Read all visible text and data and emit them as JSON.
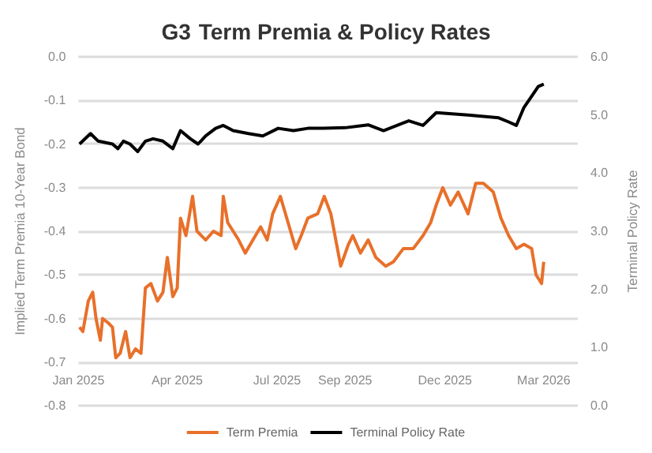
{
  "chart_data": {
    "type": "line",
    "title": "G3 Term Premia & Policy Rates",
    "ylabel": "Implied Term Premia 10-Year Bond",
    "y2label": "Terminal Policy Rate",
    "xlim": [
      "2025-01-01",
      "2026-04-01"
    ],
    "xticks": [
      {
        "value": "2025-01-01",
        "label": "Jan 2025"
      },
      {
        "value": "2025-04-01",
        "label": "Apr 2025"
      },
      {
        "value": "2025-07-01",
        "label": "Jul 2025"
      },
      {
        "value": "2025-09-01",
        "label": "Sep 2025"
      },
      {
        "value": "2025-12-01",
        "label": "Dec 2025"
      },
      {
        "value": "2026-03-01",
        "label": "Mar 2026"
      }
    ],
    "ylim": [
      -0.8,
      0
    ],
    "yticks": [
      {
        "value": -0.8,
        "label": "-0.8"
      },
      {
        "value": -0.7,
        "label": "-0.7"
      },
      {
        "value": -0.6,
        "label": "-0.6"
      },
      {
        "value": -0.5,
        "label": "-0.5"
      },
      {
        "value": -0.4,
        "label": "-0.4"
      },
      {
        "value": -0.3,
        "label": "-0.3"
      },
      {
        "value": -0.2,
        "label": "-0.2"
      },
      {
        "value": -0.1,
        "label": "-0.1"
      },
      {
        "value": 0,
        "label": "0.0"
      }
    ],
    "y2lim": [
      0,
      6
    ],
    "y2ticks": [
      {
        "value": 0,
        "label": "0.0"
      },
      {
        "value": 1,
        "label": "1.0"
      },
      {
        "value": 2,
        "label": "2.0"
      },
      {
        "value": 3,
        "label": "3.0"
      },
      {
        "value": 4,
        "label": "4.0"
      },
      {
        "value": 5,
        "label": "5.0"
      },
      {
        "value": 6,
        "label": "6.0"
      }
    ],
    "grid": "y",
    "legend": "bottom",
    "marker": "none",
    "line_style": "solid",
    "series": [
      {
        "name": "Term Premia",
        "color": "#e8702a",
        "x": [
          "2025-01-02",
          "2025-01-05",
          "2025-01-10",
          "2025-01-14",
          "2025-01-17",
          "2025-01-21",
          "2025-01-23",
          "2025-01-28",
          "2025-02-01",
          "2025-02-04",
          "2025-02-08",
          "2025-02-13",
          "2025-02-17",
          "2025-02-22",
          "2025-02-27",
          "2025-03-03",
          "2025-03-08",
          "2025-03-14",
          "2025-03-19",
          "2025-03-23",
          "2025-03-28",
          "2025-04-01",
          "2025-04-04",
          "2025-04-09",
          "2025-04-15",
          "2025-04-19",
          "2025-04-27",
          "2025-05-04",
          "2025-05-11",
          "2025-05-13",
          "2025-05-17",
          "2025-05-27",
          "2025-06-02",
          "2025-06-09",
          "2025-06-16",
          "2025-06-22",
          "2025-06-27",
          "2025-07-04",
          "2025-07-11",
          "2025-07-18",
          "2025-07-23",
          "2025-07-29",
          "2025-08-07",
          "2025-08-13",
          "2025-08-19",
          "2025-08-28",
          "2025-09-04",
          "2025-09-08",
          "2025-09-15",
          "2025-09-22",
          "2025-09-29",
          "2025-10-08",
          "2025-10-15",
          "2025-10-24",
          "2025-11-02",
          "2025-11-11",
          "2025-11-18",
          "2025-11-23",
          "2025-11-29",
          "2025-12-06",
          "2025-12-13",
          "2025-12-22",
          "2025-12-29",
          "2026-01-05",
          "2026-01-14",
          "2026-01-21",
          "2026-01-28",
          "2026-02-04",
          "2026-02-11",
          "2026-02-18",
          "2026-02-22",
          "2026-02-27",
          "2026-03-01"
        ],
        "values": [
          -0.62,
          -0.63,
          -0.56,
          -0.54,
          -0.6,
          -0.65,
          -0.6,
          -0.61,
          -0.62,
          -0.69,
          -0.68,
          -0.63,
          -0.69,
          -0.67,
          -0.68,
          -0.53,
          -0.52,
          -0.56,
          -0.54,
          -0.46,
          -0.55,
          -0.53,
          -0.37,
          -0.41,
          -0.32,
          -0.4,
          -0.42,
          -0.4,
          -0.41,
          -0.32,
          -0.38,
          -0.42,
          -0.45,
          -0.42,
          -0.39,
          -0.42,
          -0.36,
          -0.32,
          -0.38,
          -0.44,
          -0.41,
          -0.37,
          -0.36,
          -0.32,
          -0.36,
          -0.48,
          -0.43,
          -0.41,
          -0.45,
          -0.42,
          -0.46,
          -0.48,
          -0.47,
          -0.44,
          -0.44,
          -0.41,
          -0.38,
          -0.34,
          -0.3,
          -0.34,
          -0.31,
          -0.36,
          -0.29,
          -0.29,
          -0.31,
          -0.37,
          -0.41,
          -0.44,
          -0.43,
          -0.44,
          -0.5,
          -0.52,
          -0.47
        ]
      },
      {
        "name": "Terminal Policy Rate",
        "color": "#000000",
        "axis": "y2",
        "x": [
          "2025-01-02",
          "2025-01-12",
          "2025-01-19",
          "2025-02-01",
          "2025-02-06",
          "2025-02-11",
          "2025-02-17",
          "2025-02-24",
          "2025-03-03",
          "2025-03-10",
          "2025-03-19",
          "2025-03-28",
          "2025-04-04",
          "2025-04-13",
          "2025-04-20",
          "2025-04-27",
          "2025-05-06",
          "2025-05-13",
          "2025-05-22",
          "2025-06-05",
          "2025-06-18",
          "2025-07-02",
          "2025-07-16",
          "2025-07-29",
          "2025-08-12",
          "2025-09-01",
          "2025-09-22",
          "2025-10-06",
          "2025-10-29",
          "2025-11-11",
          "2025-11-23",
          "2025-12-22",
          "2026-01-19",
          "2026-01-28",
          "2026-02-04",
          "2026-02-11",
          "2026-02-19",
          "2026-02-24",
          "2026-03-01"
        ],
        "values": [
          4.5,
          4.68,
          4.55,
          4.5,
          4.42,
          4.55,
          4.5,
          4.37,
          4.55,
          4.59,
          4.55,
          4.42,
          4.73,
          4.59,
          4.5,
          4.64,
          4.77,
          4.82,
          4.73,
          4.68,
          4.64,
          4.77,
          4.73,
          4.77,
          4.77,
          4.78,
          4.83,
          4.73,
          4.9,
          4.82,
          5.04,
          5.0,
          4.95,
          4.88,
          4.82,
          5.13,
          5.35,
          5.49,
          5.53
        ]
      }
    ]
  }
}
